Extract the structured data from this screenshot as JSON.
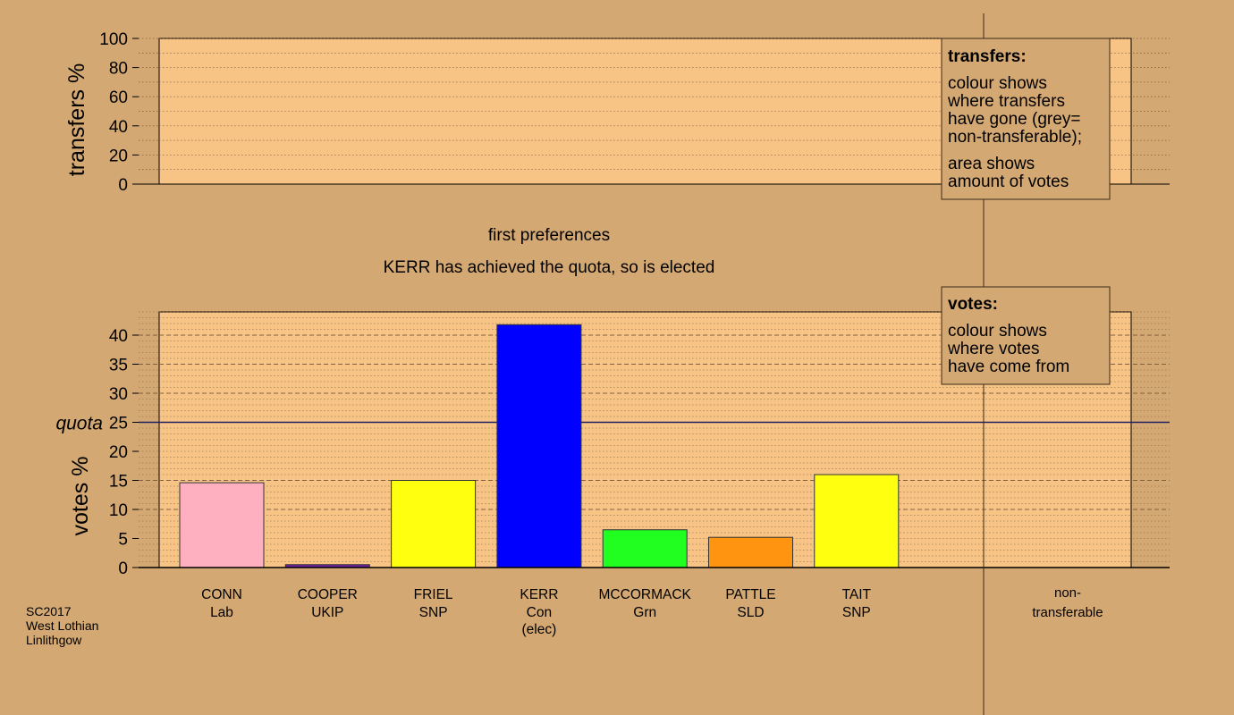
{
  "page": {
    "colors": {
      "background": "#d4a872",
      "plot_area": "#fdc988",
      "grid_line": "#806040",
      "axis_line": "#000000",
      "quota_line": "#202060"
    }
  },
  "transfers_panel": {
    "ylabel": "transfers %",
    "ylim": [
      0,
      100
    ],
    "yticks": [
      0,
      20,
      40,
      60,
      80,
      100
    ],
    "legend_title": "transfers:",
    "legend_lines_a": [
      "colour shows",
      "where transfers",
      "have gone (grey=",
      "non-transferable);"
    ],
    "legend_lines_b": [
      "area shows",
      "amount of votes"
    ]
  },
  "stage": {
    "title": "first preferences",
    "subtitle": "KERR has achieved the quota, so is elected"
  },
  "votes_panel": {
    "legend_title": "votes:",
    "legend_lines": [
      "colour shows",
      "where votes",
      "have come from"
    ],
    "quota_label": "quota"
  },
  "footer": {
    "lines": [
      "SC2017",
      "West Lothian",
      "Linlithgow"
    ]
  },
  "chart_data": {
    "type": "bar",
    "ylabel": "votes %",
    "ylim": [
      0,
      44
    ],
    "yticks": [
      0,
      5,
      10,
      15,
      20,
      25,
      30,
      35,
      40
    ],
    "quota": 25,
    "grid": true,
    "categories": [
      {
        "name": "CONN",
        "party": "Lab",
        "note": ""
      },
      {
        "name": "COOPER",
        "party": "UKIP",
        "note": ""
      },
      {
        "name": "FRIEL",
        "party": "SNP",
        "note": ""
      },
      {
        "name": "KERR",
        "party": "Con",
        "note": "(elec)"
      },
      {
        "name": "MCCORMACK",
        "party": "Grn",
        "note": ""
      },
      {
        "name": "PATTLE",
        "party": "SLD",
        "note": ""
      },
      {
        "name": "TAIT",
        "party": "SNP",
        "note": ""
      },
      {
        "name": "non-",
        "party": "transferable",
        "note": ""
      }
    ],
    "values": [
      14.6,
      0.5,
      15.0,
      41.8,
      6.5,
      5.2,
      16.0,
      0
    ],
    "colors": [
      "#ffb0c0",
      "#7020a0",
      "#ffff10",
      "#0000ff",
      "#20ff20",
      "#ff9410",
      "#ffff10",
      "#a0a0a0"
    ]
  }
}
